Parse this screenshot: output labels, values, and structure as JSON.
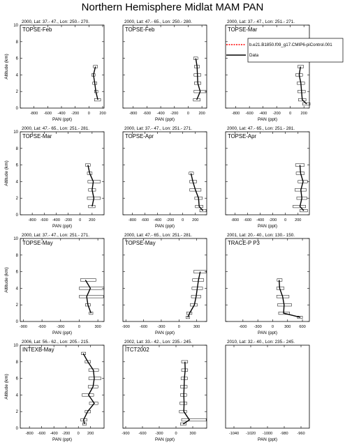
{
  "title": "Northern Hemisphere Midlat MAM PAN",
  "legend": {
    "placement": "top-right",
    "entries": [
      {
        "name": "b.e21.B1850.f09_g17.CMIP6-piControl.001",
        "color": "#ff0000",
        "style": "dashed"
      },
      {
        "name": "Data",
        "color": "#000000",
        "style": "solid"
      }
    ]
  },
  "chart_data": [
    {
      "type": "line",
      "header": "2000, Lat: 37.- 47., Lon: 250.- 270.",
      "campaign": "TOPSE-Feb",
      "xlabel": "PAN (ppt)",
      "ylabel": "Altitude (km)",
      "xlim": [
        -1000,
        220
      ],
      "xticks": [
        -800,
        -600,
        -400,
        -200,
        0,
        200
      ],
      "xtick_labels": [
        "-800",
        "-600",
        "-400",
        "-200",
        "0",
        "200"
      ],
      "ylim": [
        0,
        10
      ],
      "yticks": [
        0,
        2,
        4,
        6,
        8,
        10
      ],
      "show_yaxis_labels": true,
      "altitude": [
        1,
        2,
        3,
        4,
        5
      ],
      "pan": [
        130,
        100,
        85,
        65,
        95
      ],
      "err_low": [
        80,
        80,
        55,
        40,
        65
      ],
      "err_high": [
        170,
        130,
        115,
        90,
        125
      ]
    },
    {
      "type": "line",
      "header": "2000, Lat: 47.- 65., Lon: 250.- 280.",
      "campaign": "TOPSE-Feb",
      "xlabel": "PAN (ppt)",
      "ylabel": "Altitude (km)",
      "xlim": [
        -950,
        270
      ],
      "xticks": [
        -800,
        -600,
        -400,
        -200,
        0,
        200
      ],
      "xtick_labels": [
        "-800",
        "-600",
        "-400",
        "-200",
        "0",
        "200"
      ],
      "ylim": [
        0,
        10
      ],
      "yticks": [
        0,
        2,
        4,
        6,
        8,
        10
      ],
      "show_yaxis_labels": false,
      "altitude": [
        1,
        2,
        3,
        4,
        5,
        6
      ],
      "pan": [
        125,
        175,
        140,
        135,
        130,
        110
      ],
      "err_low": [
        75,
        85,
        90,
        85,
        90,
        80
      ],
      "err_high": [
        175,
        260,
        185,
        185,
        165,
        140
      ]
    },
    {
      "type": "line",
      "header": "2000, Lat: 37.- 47., Lon: 251.- 271.",
      "campaign": "TOPSE-Mar",
      "xlabel": "PAN (ppt)",
      "ylabel": "Altitude (km)",
      "xlim": [
        -950,
        280
      ],
      "xticks": [
        -800,
        -600,
        -400,
        -200,
        0,
        200
      ],
      "xtick_labels": [
        "-800",
        "-600",
        "-400",
        "-200",
        "0",
        "200"
      ],
      "ylim": [
        0,
        10
      ],
      "yticks": [
        0,
        2,
        4,
        6,
        8,
        10
      ],
      "show_yaxis_labels": false,
      "altitude": [
        0.5,
        1,
        2,
        3,
        4,
        5
      ],
      "pan": [
        240,
        175,
        165,
        155,
        130,
        150
      ],
      "err_low": [
        180,
        120,
        110,
        100,
        80,
        110
      ],
      "err_high": [
        290,
        230,
        220,
        210,
        180,
        195
      ]
    },
    {
      "type": "line",
      "header": "2000, Lat: 47.- 65., Lon: 251.- 281.",
      "campaign": "TOPSE-Mar",
      "xlabel": "PAN (ppt)",
      "ylabel": "Altitude (km)",
      "xlim": [
        -1000,
        400
      ],
      "xticks": [
        -800,
        -600,
        -400,
        -200,
        0,
        200
      ],
      "xtick_labels": [
        "-800",
        "-600",
        "-400",
        "-200",
        "0",
        "200"
      ],
      "ylim": [
        0,
        10
      ],
      "yticks": [
        0,
        2,
        4,
        6,
        8,
        10
      ],
      "show_yaxis_labels": true,
      "altitude": [
        1,
        2,
        3,
        4,
        5,
        6
      ],
      "pan": [
        200,
        230,
        200,
        220,
        160,
        130
      ],
      "err_low": [
        140,
        120,
        140,
        130,
        120,
        90
      ],
      "err_high": [
        250,
        340,
        260,
        340,
        200,
        170
      ]
    },
    {
      "type": "line",
      "header": "2000, Lat: 37.- 47., Lon: 251.- 271.",
      "campaign": "TOPSE-Apr",
      "xlabel": "PAN (ppt)",
      "ylabel": "Altitude (km)",
      "xlim": [
        -950,
        380
      ],
      "xticks": [
        -800,
        -600,
        -400,
        -200,
        0,
        200
      ],
      "xtick_labels": [
        "-800",
        "-600",
        "-400",
        "-200",
        "0",
        "200"
      ],
      "ylim": [
        0,
        10
      ],
      "yticks": [
        0,
        2,
        4,
        6,
        8,
        10
      ],
      "show_yaxis_labels": false,
      "altitude": [
        0.5,
        1,
        2,
        3,
        4,
        5
      ],
      "pan": [
        320,
        260,
        250,
        200,
        160,
        130
      ],
      "err_low": [
        270,
        200,
        190,
        110,
        110,
        100
      ],
      "err_high": [
        370,
        320,
        310,
        290,
        220,
        170
      ]
    },
    {
      "type": "line",
      "header": "2000, Lat: 47.- 65., Lon: 251.- 281.",
      "campaign": "TOPSE-Apr",
      "xlabel": "PAN (ppt)",
      "ylabel": "Altitude (km)",
      "xlim": [
        -950,
        380
      ],
      "xticks": [
        -800,
        -600,
        -400,
        -200,
        0,
        200
      ],
      "xtick_labels": [
        "-800",
        "-600",
        "-400",
        "-200",
        "0",
        "200"
      ],
      "ylim": [
        0,
        10
      ],
      "yticks": [
        0,
        2,
        4,
        6,
        8,
        10
      ],
      "show_yaxis_labels": false,
      "altitude": [
        0.5,
        1,
        2,
        3,
        4,
        5,
        6
      ],
      "pan": [
        290,
        230,
        260,
        245,
        280,
        240,
        230
      ],
      "err_low": [
        230,
        120,
        180,
        150,
        200,
        170,
        160
      ],
      "err_high": [
        350,
        320,
        340,
        330,
        350,
        300,
        300
      ]
    },
    {
      "type": "line",
      "header": "2000, Lat: 37.- 47., Lon: 251.- 271.",
      "campaign": "TOPSE-May",
      "xlabel": "PAN (ppt)",
      "ylabel": "Altitude (km)",
      "xlim": [
        -950,
        400
      ],
      "xticks": [
        -900,
        -600,
        -300,
        0,
        300
      ],
      "xtick_labels": [
        "-900",
        "-600",
        "-300",
        "0",
        "300"
      ],
      "ylim": [
        0,
        10
      ],
      "yticks": [
        0,
        2,
        4,
        6,
        8,
        10
      ],
      "show_yaxis_labels": true,
      "altitude": [
        1,
        2,
        3,
        4,
        5
      ],
      "pan": [
        190,
        140,
        120,
        180,
        100
      ],
      "err_low": [
        160,
        100,
        0,
        0,
        20
      ],
      "err_high": [
        220,
        180,
        390,
        400,
        270
      ]
    },
    {
      "type": "line",
      "header": "2000, Lat: 47.- 65., Lon: 251.- 281.",
      "campaign": "TOPSE-May",
      "xlabel": "PAN (ppt)",
      "ylabel": "Altitude (km)",
      "xlim": [
        -950,
        470
      ],
      "xticks": [
        -900,
        -600,
        -300,
        0,
        300
      ],
      "xtick_labels": [
        "-900",
        "-600",
        "-300",
        "0",
        "300"
      ],
      "ylim": [
        0,
        10
      ],
      "yticks": [
        0,
        2,
        4,
        6,
        8,
        10
      ],
      "show_yaxis_labels": false,
      "altitude": [
        0.5,
        1,
        2,
        3,
        4,
        5,
        6
      ],
      "pan": [
        150,
        180,
        260,
        290,
        310,
        330,
        360
      ],
      "err_low": [
        120,
        130,
        190,
        210,
        220,
        230,
        250
      ],
      "err_high": [
        180,
        220,
        310,
        370,
        400,
        420,
        460
      ]
    },
    {
      "type": "line",
      "header": "2001, Lat: 20.- 40., Lon: 130.- 150.",
      "campaign": "TRACE-P P3",
      "xlabel": "PAN (ppt)",
      "ylabel": "Altitude (km)",
      "xlim": [
        -950,
        740
      ],
      "xticks": [
        -600,
        -300,
        0,
        300,
        600
      ],
      "xtick_labels": [
        "-600",
        "-300",
        "0",
        "300",
        "600"
      ],
      "ylim": [
        0,
        10
      ],
      "yticks": [
        0,
        2,
        4,
        6,
        8,
        10
      ],
      "show_yaxis_labels": false,
      "altitude": [
        0.5,
        1,
        2,
        3,
        4,
        5
      ],
      "pan": [
        560,
        220,
        230,
        200,
        140,
        130
      ],
      "err_low": [
        500,
        120,
        100,
        80,
        80,
        90
      ],
      "err_high": [
        600,
        340,
        380,
        330,
        230,
        190
      ]
    },
    {
      "type": "line",
      "header": "2006, Lat: 56.- 62., Lon: 205.- 215.",
      "campaign": "INTEXB-May",
      "xlabel": "PAN (ppt)",
      "ylabel": "Altitude (km)",
      "xlim": [
        -950,
        420
      ],
      "xticks": [
        -800,
        -600,
        -400,
        -200,
        0,
        200
      ],
      "xtick_labels": [
        "-800",
        "-600",
        "-400",
        "-200",
        "0",
        "200"
      ],
      "ylim": [
        0,
        10
      ],
      "yticks": [
        0,
        2,
        4,
        6,
        8,
        10
      ],
      "show_yaxis_labels": true,
      "altitude": [
        0.5,
        1,
        2,
        3,
        4,
        5,
        6,
        7,
        8,
        9
      ],
      "pan": [
        100,
        85,
        150,
        260,
        165,
        240,
        260,
        245,
        155,
        80
      ],
      "err_low": [
        70,
        40,
        110,
        180,
        60,
        160,
        170,
        170,
        110,
        50
      ],
      "err_high": [
        130,
        140,
        200,
        320,
        250,
        320,
        370,
        330,
        200,
        120
      ]
    },
    {
      "type": "line",
      "header": "2002, Lat: 33.- 42., Lon: 235.- 245.",
      "campaign": "ITCT2002",
      "xlabel": "PAN (ppt)",
      "ylabel": "Altitude (km)",
      "xlim": [
        -950,
        550
      ],
      "xticks": [
        -900,
        -600,
        -300,
        0,
        300
      ],
      "xtick_labels": [
        "-900",
        "-600",
        "-300",
        "0",
        "300"
      ],
      "ylim": [
        0,
        10
      ],
      "yticks": [
        0,
        2,
        4,
        6,
        8,
        10
      ],
      "show_yaxis_labels": false,
      "altitude": [
        0.5,
        1,
        2,
        3,
        4,
        5,
        6,
        7,
        8
      ],
      "pan": [
        130,
        240,
        140,
        145,
        140,
        145,
        150,
        165,
        160
      ],
      "err_low": [
        80,
        100,
        60,
        70,
        80,
        80,
        90,
        100,
        100
      ],
      "err_high": [
        180,
        540,
        190,
        195,
        190,
        200,
        205,
        210,
        210
      ]
    },
    {
      "type": "line",
      "header": "2010, Lat: 32.- 40., Lon: 235.- 245.",
      "campaign": "",
      "xlabel": "PAN (ppt)",
      "ylabel": "",
      "xlim": [
        -1050,
        -950
      ],
      "xticks": [
        -1040,
        -1020,
        -1000,
        -980,
        -960
      ],
      "xtick_labels": [
        "-1040",
        "-1020",
        "-1000",
        "-980",
        "-960"
      ],
      "ylim": [
        0,
        10
      ],
      "yticks": [],
      "show_yaxis_labels": false,
      "empty": true,
      "altitude": [],
      "pan": [],
      "err_low": [],
      "err_high": []
    }
  ]
}
